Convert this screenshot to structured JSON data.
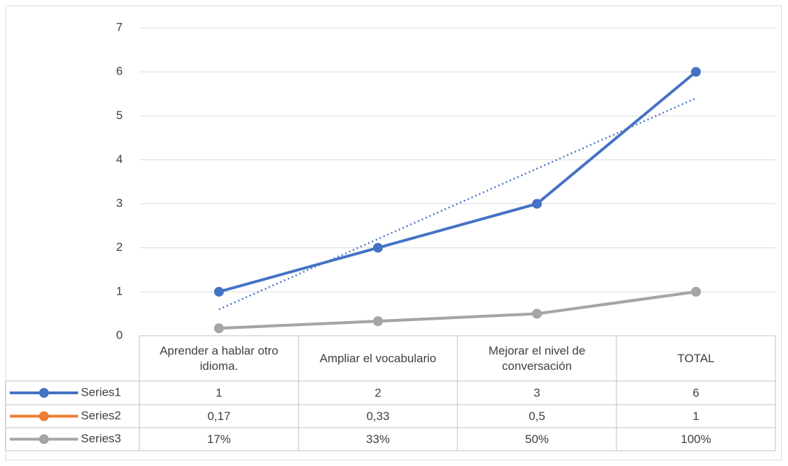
{
  "chart_data": {
    "type": "line",
    "categories": [
      "Aprender a hablar otro idioma.",
      "Ampliar el vocabulario",
      "Mejorar el nivel de conversación",
      "TOTAL"
    ],
    "series": [
      {
        "name": "Series1",
        "color": "#4472c4",
        "values": [
          1,
          2,
          3,
          6
        ],
        "trendline": "linear"
      },
      {
        "name": "Series2",
        "color": "#ed7d31",
        "values": [
          0.17,
          0.33,
          0.5,
          1
        ],
        "value_labels": [
          "0,17",
          "0,33",
          "0,5",
          "1"
        ]
      },
      {
        "name": "Series3",
        "color": "#a5a5a5",
        "values": [
          0.17,
          0.33,
          0.5,
          1
        ],
        "value_labels": [
          "17%",
          "33%",
          "50%",
          "100%"
        ]
      }
    ],
    "ylim": [
      0,
      7
    ],
    "yticks": [
      0,
      1,
      2,
      3,
      4,
      5,
      6,
      7
    ],
    "grid": true,
    "data_table": true
  }
}
